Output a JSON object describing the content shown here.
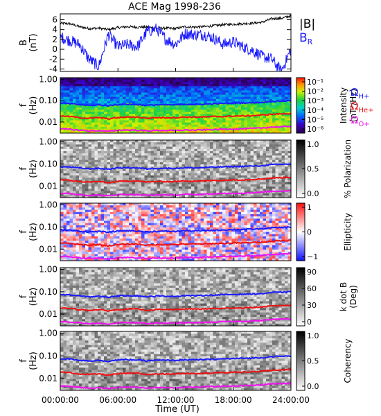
{
  "figure": {
    "title": "ACE Mag 1998-236",
    "xlabel": "Time (UT)",
    "xticks": [
      "00:00:00",
      "06:00:00",
      "12:00:00",
      "18:00:00",
      "24:00:00"
    ],
    "xtick_hours": [
      0,
      6,
      12,
      18,
      24
    ],
    "xlim_hours": [
      0,
      24
    ]
  },
  "chart_data": [
    {
      "type": "line",
      "panel": "field",
      "ylabel": "B",
      "yunit": "(nT)",
      "ylim": [
        -4.5,
        7.2
      ],
      "yticks": [
        -4,
        -2,
        0,
        2,
        4,
        6
      ],
      "x_hours": [
        0,
        1,
        2,
        3,
        4,
        5,
        6,
        7,
        8,
        9,
        10,
        11,
        12,
        13,
        14,
        15,
        16,
        17,
        18,
        19,
        20,
        21,
        22,
        23,
        24
      ],
      "series": [
        {
          "name": "|B|",
          "color": "#000000",
          "values": [
            5.3,
            5.2,
            4.6,
            4.2,
            4.3,
            4.0,
            4.4,
            4.6,
            4.5,
            4.5,
            4.3,
            4.3,
            4.2,
            4.6,
            4.5,
            4.6,
            4.8,
            5.0,
            5.1,
            5.2,
            5.3,
            5.5,
            6.2,
            6.3,
            6.8
          ]
        },
        {
          "name": "B_R",
          "color": "#1a1aff",
          "values": [
            2.5,
            1.8,
            1.0,
            -2.0,
            -3.5,
            3.0,
            0.5,
            1.0,
            0.5,
            3.5,
            4.2,
            2.0,
            1.0,
            3.2,
            3.0,
            3.0,
            2.2,
            1.0,
            1.5,
            0.5,
            -0.2,
            -1.5,
            -2.0,
            -4.5,
            0.0
          ]
        }
      ],
      "legend": [
        "|B|",
        "B_R"
      ]
    },
    {
      "type": "heatmap",
      "panel": "intensity",
      "ylabel": "f",
      "yunit": "(Hz)",
      "yscale": "log",
      "ylim": [
        0.003,
        1.2
      ],
      "yticks": [
        1.0,
        0.1,
        0.01
      ],
      "ytick_labels": [
        "1.00",
        "0.10",
        "0.01"
      ],
      "colorbar": {
        "label": "Intensity",
        "unit": "(nT²/Hz)",
        "scale": "rainbow",
        "tick_labels": [
          "10⁻¹",
          "10⁻²",
          "10⁻³",
          "10⁻⁴",
          "10⁻⁵",
          "10⁻⁶"
        ]
      },
      "legend": [
        "Ω_H+",
        "Ω_He+",
        "Ω_O+"
      ]
    },
    {
      "type": "heatmap",
      "panel": "polarization",
      "ylabel": "f",
      "yunit": "(Hz)",
      "yscale": "log",
      "ylim": [
        0.003,
        1.2
      ],
      "yticks": [
        1.0,
        0.1,
        0.01
      ],
      "ytick_labels": [
        "1.00",
        "0.10",
        "0.01"
      ],
      "colorbar": {
        "label": "% Polarization",
        "scale": "gray",
        "tick_labels": [
          "1.0",
          "0.5",
          "0.0"
        ]
      }
    },
    {
      "type": "heatmap",
      "panel": "ellipticity",
      "ylabel": "f",
      "yunit": "(Hz)",
      "yscale": "log",
      "ylim": [
        0.003,
        1.2
      ],
      "yticks": [
        1.0,
        0.1,
        0.01
      ],
      "ytick_labels": [
        "1.00",
        "0.10",
        "0.01"
      ],
      "colorbar": {
        "label": "Ellipticity",
        "scale": "bluered",
        "tick_labels": [
          "1",
          "0",
          "−1"
        ]
      }
    },
    {
      "type": "heatmap",
      "panel": "kdotb",
      "ylabel": "f",
      "yunit": "(Hz)",
      "yscale": "log",
      "ylim": [
        0.003,
        1.2
      ],
      "yticks": [
        1.0,
        0.1,
        0.01
      ],
      "ytick_labels": [
        "1.00",
        "0.10",
        "0.01"
      ],
      "colorbar": {
        "label": "k dot B",
        "unit": "(Deg)",
        "scale": "gray_rev",
        "tick_labels": [
          "90",
          "60",
          "30",
          "0"
        ]
      }
    },
    {
      "type": "heatmap",
      "panel": "coherency",
      "ylabel": "f",
      "yunit": "(Hz)",
      "yscale": "log",
      "ylim": [
        0.003,
        1.2
      ],
      "yticks": [
        1.0,
        0.1,
        0.01
      ],
      "ytick_labels": [
        "1.00",
        "0.10",
        "0.01"
      ],
      "colorbar": {
        "label": "Coherency",
        "scale": "gray",
        "tick_labels": [
          "1.0",
          "0.5",
          "0.0"
        ]
      }
    }
  ],
  "gyrofrequencies": {
    "x_hours": [
      0,
      1,
      2,
      3,
      4,
      5,
      6,
      7,
      8,
      9,
      10,
      11,
      12,
      13,
      14,
      15,
      16,
      17,
      18,
      19,
      20,
      21,
      22,
      23,
      24
    ],
    "series": [
      {
        "name": "Ω_H+",
        "color": "#1a1aff",
        "values": [
          0.075,
          0.072,
          0.065,
          0.06,
          0.063,
          0.058,
          0.066,
          0.068,
          0.066,
          0.06,
          0.064,
          0.064,
          0.063,
          0.068,
          0.066,
          0.069,
          0.071,
          0.074,
          0.076,
          0.078,
          0.08,
          0.083,
          0.093,
          0.095,
          0.1
        ]
      },
      {
        "name": "Ω_He+",
        "color": "#ee1111",
        "values": [
          0.019,
          0.018,
          0.016,
          0.015,
          0.016,
          0.014,
          0.016,
          0.017,
          0.017,
          0.015,
          0.016,
          0.016,
          0.016,
          0.017,
          0.017,
          0.017,
          0.018,
          0.018,
          0.019,
          0.019,
          0.02,
          0.021,
          0.023,
          0.024,
          0.025
        ]
      },
      {
        "name": "Ω_O+",
        "color": "#ee11ee",
        "values": [
          0.0047,
          0.0045,
          0.0041,
          0.0038,
          0.0039,
          0.0036,
          0.0041,
          0.0042,
          0.0041,
          0.0038,
          0.004,
          0.004,
          0.0039,
          0.0042,
          0.0041,
          0.0043,
          0.0044,
          0.0046,
          0.0047,
          0.0048,
          0.005,
          0.0052,
          0.0058,
          0.0059,
          0.0063
        ]
      }
    ]
  }
}
